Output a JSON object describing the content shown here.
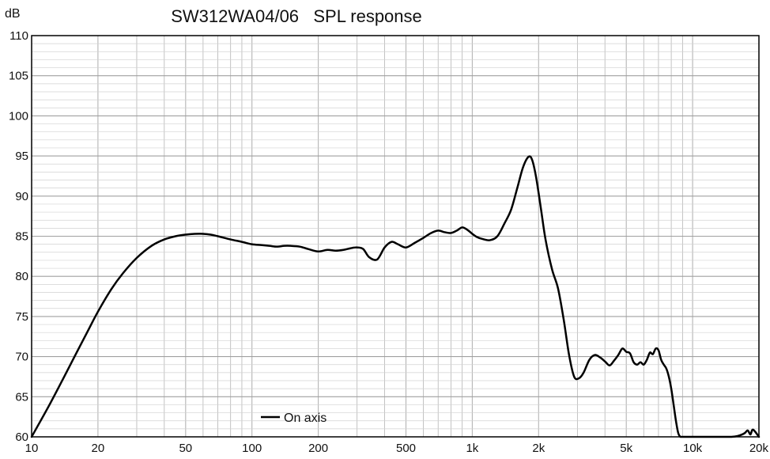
{
  "chart_data": {
    "type": "line",
    "title": "SW312WA04/06   SPL response",
    "ylabel": "dB",
    "xlabel": "",
    "x_scale": "log",
    "xlim": [
      10,
      20000
    ],
    "ylim": [
      60,
      110
    ],
    "grid": true,
    "legend_position": "bottom-left",
    "x_ticks": [
      {
        "value": 10,
        "label": "10"
      },
      {
        "value": 20,
        "label": "20"
      },
      {
        "value": 50,
        "label": "50"
      },
      {
        "value": 100,
        "label": "100"
      },
      {
        "value": 200,
        "label": "200"
      },
      {
        "value": 500,
        "label": "500"
      },
      {
        "value": 1000,
        "label": "1k"
      },
      {
        "value": 2000,
        "label": "2k"
      },
      {
        "value": 5000,
        "label": "5k"
      },
      {
        "value": 10000,
        "label": "10k"
      },
      {
        "value": 20000,
        "label": "20k"
      }
    ],
    "y_ticks": [
      {
        "value": 60,
        "label": "60"
      },
      {
        "value": 65,
        "label": "65"
      },
      {
        "value": 70,
        "label": "70"
      },
      {
        "value": 75,
        "label": "75"
      },
      {
        "value": 80,
        "label": "80"
      },
      {
        "value": 85,
        "label": "85"
      },
      {
        "value": 90,
        "label": "90"
      },
      {
        "value": 95,
        "label": "95"
      },
      {
        "value": 100,
        "label": "100"
      },
      {
        "value": 105,
        "label": "105"
      },
      {
        "value": 110,
        "label": "110"
      }
    ],
    "colors": {
      "line": "#000000",
      "grid": "#b4b4b4",
      "frame": "#000000"
    },
    "series": [
      {
        "name": "On axis",
        "x": [
          10,
          12,
          14,
          16,
          18,
          20,
          23,
          26,
          30,
          35,
          40,
          45,
          50,
          55,
          60,
          65,
          70,
          80,
          90,
          100,
          110,
          120,
          130,
          140,
          150,
          165,
          180,
          200,
          220,
          240,
          260,
          280,
          300,
          320,
          340,
          370,
          400,
          430,
          460,
          500,
          550,
          600,
          650,
          700,
          750,
          800,
          850,
          900,
          950,
          1000,
          1050,
          1100,
          1200,
          1300,
          1400,
          1500,
          1600,
          1700,
          1800,
          1870,
          1950,
          2050,
          2150,
          2300,
          2450,
          2600,
          2750,
          2900,
          3050,
          3200,
          3400,
          3600,
          3800,
          4000,
          4200,
          4400,
          4600,
          4800,
          5000,
          5200,
          5400,
          5600,
          5800,
          6000,
          6200,
          6400,
          6600,
          6800,
          7000,
          7200,
          7400,
          7600,
          7800,
          8000,
          8200,
          8400,
          8600,
          8800,
          9000,
          9200,
          9500,
          10000,
          12000,
          14000,
          15000,
          16000,
          16800,
          17300,
          17800,
          18300,
          18800,
          20000
        ],
        "y": [
          60.0,
          63.9,
          67.4,
          70.5,
          73.2,
          75.6,
          78.4,
          80.4,
          82.3,
          83.8,
          84.6,
          85.0,
          85.2,
          85.3,
          85.3,
          85.2,
          85.0,
          84.6,
          84.3,
          84.0,
          83.9,
          83.8,
          83.7,
          83.8,
          83.8,
          83.7,
          83.4,
          83.1,
          83.3,
          83.2,
          83.3,
          83.5,
          83.6,
          83.4,
          82.4,
          82.1,
          83.6,
          84.3,
          84.0,
          83.6,
          84.2,
          84.8,
          85.4,
          85.7,
          85.5,
          85.4,
          85.7,
          86.1,
          85.8,
          85.3,
          84.9,
          84.7,
          84.5,
          85.0,
          86.6,
          88.3,
          91.0,
          93.6,
          94.9,
          94.5,
          92.3,
          88.4,
          84.6,
          80.9,
          78.5,
          74.6,
          70.2,
          67.5,
          67.3,
          68.0,
          69.6,
          70.2,
          69.9,
          69.4,
          68.9,
          69.5,
          70.2,
          71.0,
          70.6,
          70.4,
          69.3,
          69.0,
          69.3,
          69.0,
          69.6,
          70.5,
          70.3,
          71.0,
          70.8,
          69.6,
          69.0,
          68.5,
          67.5,
          66.0,
          64.0,
          62.0,
          60.5,
          60.0,
          60.0,
          60.0,
          60.0,
          60.0,
          60.0,
          60.0,
          60.0,
          60.1,
          60.3,
          60.5,
          60.8,
          60.3,
          60.9,
          60.0
        ]
      }
    ],
    "legend_label": "On axis"
  }
}
